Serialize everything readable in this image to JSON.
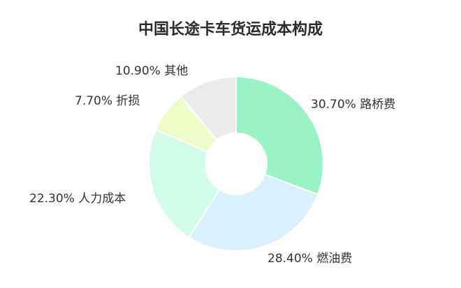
{
  "chart_data": {
    "type": "pie",
    "title": "中国长途卡车货运成本构成",
    "donut": true,
    "slices": [
      {
        "label": "路桥费",
        "value": 30.7,
        "display": "30.70%",
        "color": "#9af3c6"
      },
      {
        "label": "燃油费",
        "value": 28.4,
        "display": "28.40%",
        "color": "#daf1fd"
      },
      {
        "label": "人力成本",
        "value": 22.3,
        "display": "22.30%",
        "color": "#d2fbe9"
      },
      {
        "label": "折损",
        "value": 7.7,
        "display": "7.70%",
        "color": "#eefcc8"
      },
      {
        "label": "其他",
        "value": 10.9,
        "display": "10.90%",
        "color": "#ebebeb"
      }
    ]
  }
}
